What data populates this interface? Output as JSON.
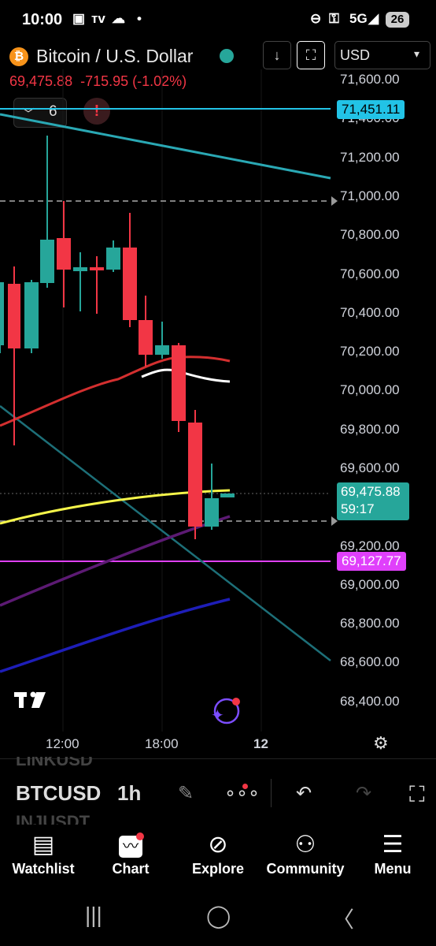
{
  "status_bar": {
    "time": "10:00",
    "network": "5G",
    "battery": "26",
    "left_icons": [
      "image-icon",
      "tv-icon",
      "cloud-icon",
      "dot-icon"
    ],
    "right_icons": [
      "dnd-icon",
      "key-icon",
      "signal-icon"
    ]
  },
  "header": {
    "symbol_badge": "₿",
    "title": "Bitcoin / U.S. Dollar",
    "price_change": "69,475.88  -715.95 (-1.02%)",
    "currency": "USD",
    "indicators_count": "6",
    "buttons": [
      "download-icon",
      "fullscreen-icon"
    ]
  },
  "colors": {
    "up": "#26a69a",
    "down": "#f23645",
    "accent_cyan": "#22c3e6",
    "accent_magenta": "#e040fb",
    "btc_orange": "#f7931a"
  },
  "chart": {
    "y_axis": [
      "71,600.00",
      "71,400.00",
      "71,200.00",
      "71,000.00",
      "70,800.00",
      "70,600.00",
      "70,400.00",
      "70,200.00",
      "70,000.00",
      "69,800.00",
      "69,600.00",
      "69,400.00",
      "69,200.00",
      "69,000.00",
      "68,800.00",
      "68,600.00",
      "68,400.00"
    ],
    "x_axis": [
      "12:00",
      "18:00",
      "12"
    ],
    "tags": {
      "top_line": "71,451.11",
      "last_price": "69,475.88",
      "countdown": "59:17",
      "bottom_line": "69,127.77"
    }
  },
  "toolbar": {
    "ghost_top": "LINKUSD",
    "symbol": "BTCUSD",
    "interval": "1h",
    "ghost_bottom": "INJUSDT"
  },
  "bottom_nav": [
    {
      "label": "Watchlist",
      "icon": "watchlist-icon"
    },
    {
      "label": "Chart",
      "icon": "chart-icon"
    },
    {
      "label": "Explore",
      "icon": "compass-icon"
    },
    {
      "label": "Community",
      "icon": "community-icon"
    },
    {
      "label": "Menu",
      "icon": "menu-icon"
    }
  ]
}
